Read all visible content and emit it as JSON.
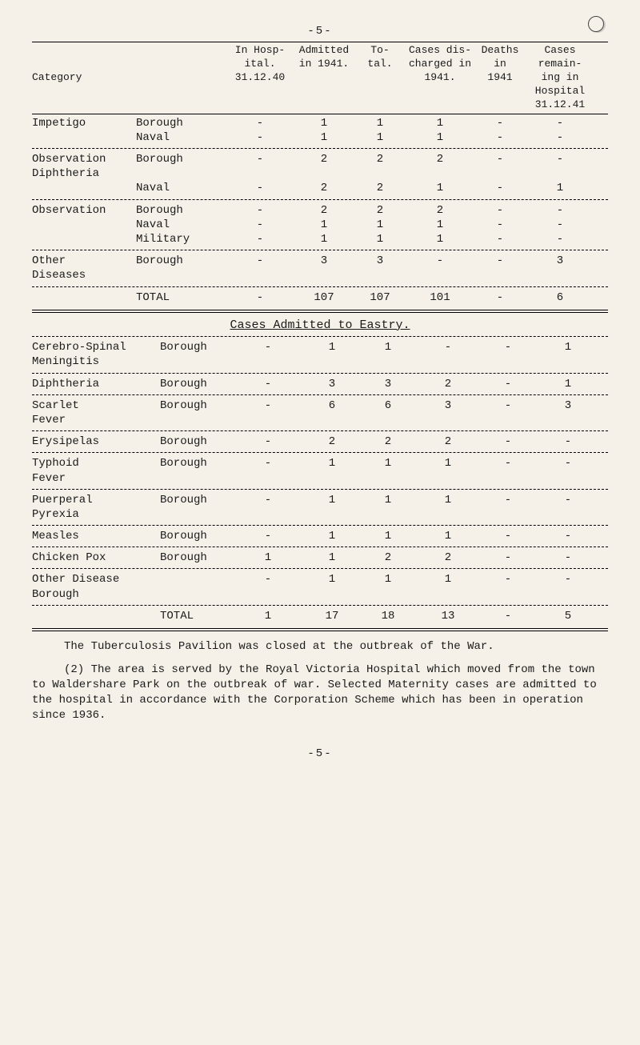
{
  "pageNumber": "-5-",
  "table1": {
    "header": {
      "category": "Category",
      "col1": "In Hosp-\nital.\n31.12.40",
      "col2": "Admitted\nin 1941.",
      "col3": "To-\ntal.",
      "col4": "Cases dis-\ncharged in\n1941.",
      "col5": "Deaths\nin\n1941",
      "col6": "Cases\nremain-\ning in\nHospital\n31.12.41"
    },
    "groups": [
      {
        "category": "Impetigo",
        "rows": [
          {
            "sub": "Borough",
            "c": [
              "-",
              "1",
              "1",
              "1",
              "-",
              "-"
            ]
          },
          {
            "sub": "Naval",
            "c": [
              "-",
              "1",
              "1",
              "1",
              "-",
              "-"
            ]
          }
        ]
      },
      {
        "category": "Observation\nDiphtheria",
        "rows": [
          {
            "sub": "Borough",
            "c": [
              "-",
              "2",
              "2",
              "2",
              "-",
              "-"
            ]
          },
          {
            "sub": "Naval",
            "c": [
              "-",
              "2",
              "2",
              "1",
              "-",
              "1"
            ]
          }
        ]
      },
      {
        "category": "Observation",
        "rows": [
          {
            "sub": "Borough",
            "c": [
              "-",
              "2",
              "2",
              "2",
              "-",
              "-"
            ]
          },
          {
            "sub": "Naval",
            "c": [
              "-",
              "1",
              "1",
              "1",
              "-",
              "-"
            ]
          },
          {
            "sub": "Military",
            "c": [
              "-",
              "1",
              "1",
              "1",
              "-",
              "-"
            ]
          }
        ]
      },
      {
        "category": "Other\nDiseases",
        "rows": [
          {
            "sub": "Borough",
            "c": [
              "-",
              "3",
              "3",
              "-",
              "-",
              "3"
            ]
          }
        ]
      }
    ],
    "total": {
      "label": "TOTAL",
      "c": [
        "-",
        "107",
        "107",
        "101",
        "-",
        "6"
      ]
    }
  },
  "subtitle": "Cases Admitted to Eastry.",
  "table2": {
    "rows": [
      {
        "cat": "Cerebro-Spinal\nMeningitis",
        "sub": "Borough",
        "c": [
          "-",
          "1",
          "1",
          "-",
          "-",
          "1"
        ]
      },
      {
        "cat": "Diphtheria",
        "sub": "Borough",
        "c": [
          "-",
          "3",
          "3",
          "2",
          "-",
          "1"
        ]
      },
      {
        "cat": "Scarlet\nFever",
        "sub": "Borough",
        "c": [
          "-",
          "6",
          "6",
          "3",
          "-",
          "3"
        ]
      },
      {
        "cat": "Erysipelas",
        "sub": "Borough",
        "c": [
          "-",
          "2",
          "2",
          "2",
          "-",
          "-"
        ]
      },
      {
        "cat": "Typhoid\nFever",
        "sub": "Borough",
        "c": [
          "-",
          "1",
          "1",
          "1",
          "-",
          "-"
        ]
      },
      {
        "cat": "Puerperal\nPyrexia",
        "sub": "Borough",
        "c": [
          "-",
          "1",
          "1",
          "1",
          "-",
          "-"
        ]
      },
      {
        "cat": "Measles",
        "sub": "Borough",
        "c": [
          "-",
          "1",
          "1",
          "1",
          "-",
          "-"
        ]
      },
      {
        "cat": "Chicken Pox",
        "sub": "Borough",
        "c": [
          "1",
          "1",
          "2",
          "2",
          "-",
          "-"
        ]
      },
      {
        "cat": "Other Disease Borough",
        "sub": "",
        "c": [
          "-",
          "1",
          "1",
          "1",
          "-",
          "-"
        ]
      }
    ],
    "total": {
      "label": "TOTAL",
      "c": [
        "1",
        "17",
        "18",
        "13",
        "-",
        "5"
      ]
    }
  },
  "note": "The Tuberculosis Pavilion was closed at the outbreak of the War.",
  "para2": "(2)  The area is served by the Royal Victoria Hospital which moved from the town to Waldershare Park on the outbreak of war. Selected Maternity cases are admitted to the hospital in accordance with the Corporation Scheme which has been in operation since 1936.",
  "bottomPage": "-5-"
}
